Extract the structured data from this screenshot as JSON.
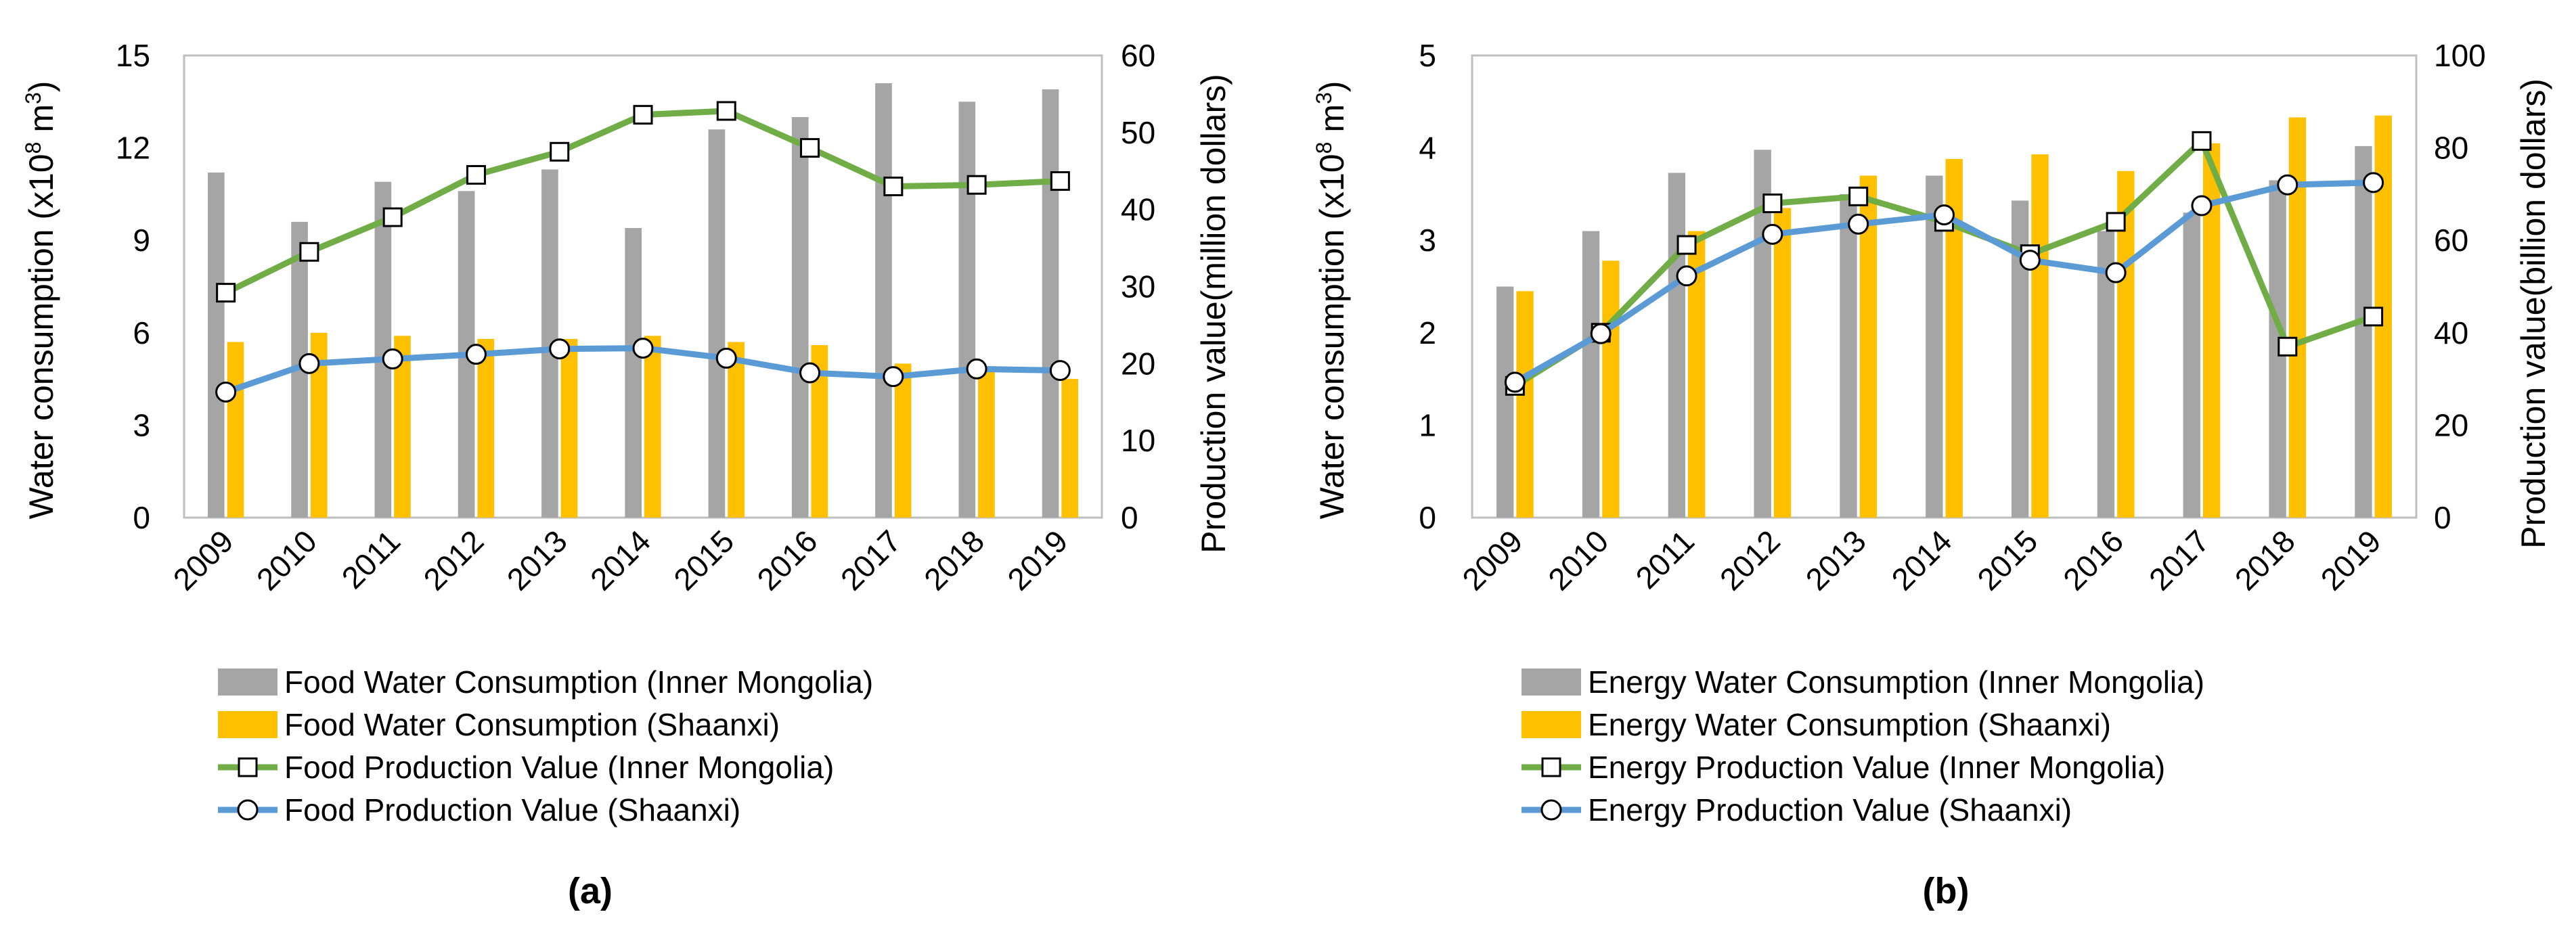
{
  "colors": {
    "gray_bar": "#a5a5a5",
    "gold_bar": "#ffc000",
    "green_line": "#70ad47",
    "blue_line": "#5b9bd5",
    "frame": "#bfbfbf"
  },
  "chart_data": [
    {
      "type": "bar+line",
      "panel_label": "(a)",
      "categories": [
        "2009",
        "2010",
        "2011",
        "2012",
        "2013",
        "2014",
        "2015",
        "2016",
        "2017",
        "2018",
        "2019"
      ],
      "left_axis": {
        "title_prefix": "Water consumption (x10",
        "title_sup1": "8",
        "title_mid": " m",
        "title_sup2": "3",
        "title_suffix": ")",
        "ylim": [
          0,
          15
        ],
        "ticks": [
          "0",
          "3",
          "6",
          "9",
          "12",
          "15"
        ]
      },
      "right_axis": {
        "title": "Production value(million dollars)",
        "ylim": [
          0,
          60
        ],
        "ticks": [
          "0",
          "10",
          "20",
          "30",
          "40",
          "50",
          "60"
        ]
      },
      "bar_series": [
        {
          "name": "Food Water Consumption (Inner Mongolia)",
          "color": "#a5a5a5",
          "values": [
            11.2,
            9.6,
            10.9,
            10.6,
            11.3,
            9.4,
            12.6,
            13.0,
            14.1,
            13.5,
            13.9
          ]
        },
        {
          "name": "Food Water Consumption (Shaanxi)",
          "color": "#ffc000",
          "values": [
            5.7,
            6.0,
            5.9,
            5.8,
            5.8,
            5.9,
            5.7,
            5.6,
            5.0,
            4.8,
            4.5
          ]
        }
      ],
      "line_series": [
        {
          "name": "Food Production Value (Inner Mongolia)",
          "color": "#70ad47",
          "marker": "square",
          "values": [
            29.2,
            34.5,
            39.0,
            44.5,
            47.5,
            52.3,
            52.8,
            48.0,
            43.0,
            43.2,
            43.7
          ]
        },
        {
          "name": "Food Production Value (Shaanxi)",
          "color": "#5b9bd5",
          "marker": "circle",
          "values": [
            16.3,
            20.0,
            20.6,
            21.2,
            21.9,
            22.0,
            20.7,
            18.8,
            18.3,
            19.3,
            19.1
          ]
        }
      ]
    },
    {
      "type": "bar+line",
      "panel_label": "(b)",
      "categories": [
        "2009",
        "2010",
        "2011",
        "2012",
        "2013",
        "2014",
        "2015",
        "2016",
        "2017",
        "2018",
        "2019"
      ],
      "left_axis": {
        "title_prefix": "Water consumption (x10",
        "title_sup1": "8",
        "title_mid": "  m",
        "title_sup2": "3",
        "title_suffix": ")",
        "ylim": [
          0,
          5
        ],
        "ticks": [
          "0",
          "1",
          "2",
          "3",
          "4",
          "5"
        ]
      },
      "right_axis": {
        "title": "Production value(billion dollars)",
        "ylim": [
          0,
          100
        ],
        "ticks": [
          "0",
          "20",
          "40",
          "60",
          "80",
          "100"
        ]
      },
      "bar_series": [
        {
          "name": "Energy Water Consumption (Inner Mongolia)",
          "color": "#a5a5a5",
          "values": [
            2.5,
            3.1,
            3.73,
            3.98,
            3.5,
            3.7,
            3.43,
            3.1,
            3.3,
            3.65,
            4.02
          ]
        },
        {
          "name": "Energy Water Consumption (Shaanxi)",
          "color": "#ffc000",
          "values": [
            2.45,
            2.78,
            3.1,
            3.35,
            3.7,
            3.88,
            3.93,
            3.75,
            4.05,
            4.33,
            4.35
          ]
        }
      ],
      "line_series": [
        {
          "name": "Energy Production Value (Inner Mongolia)",
          "color": "#70ad47",
          "marker": "square",
          "values": [
            28.5,
            40.0,
            59.0,
            68.0,
            69.5,
            64.0,
            57.0,
            64.0,
            81.5,
            37.0,
            43.5
          ]
        },
        {
          "name": "Energy Production Value (Shaanxi)",
          "color": "#5b9bd5",
          "marker": "circle",
          "values": [
            29.3,
            39.8,
            52.3,
            61.3,
            63.5,
            65.5,
            55.7,
            53.0,
            67.5,
            72.0,
            72.5
          ]
        }
      ]
    }
  ]
}
